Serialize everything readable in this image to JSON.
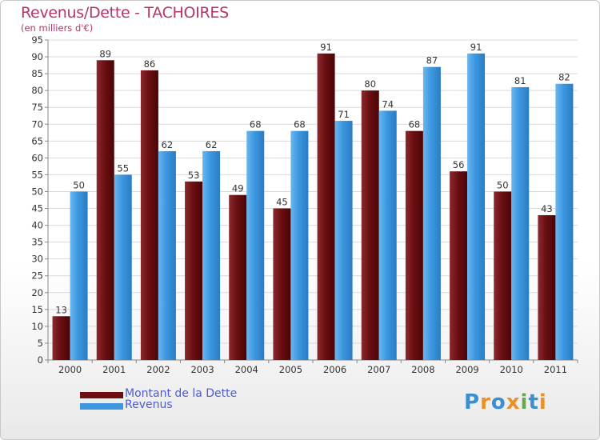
{
  "title": "Revenus/Dette - TACHOIRES",
  "subtitle": "(en milliers d'€)",
  "logo": {
    "text": "Proxiti",
    "letters": [
      "P",
      "r",
      "o",
      "x",
      "i",
      "t",
      "i"
    ],
    "colors": [
      "#3a8fd0",
      "#e8912a",
      "#3a8fd0",
      "#e8912a",
      "#6aa84f",
      "#3a8fd0",
      "#e8912a"
    ]
  },
  "colors": {
    "dette": "#6b0f12",
    "revenus": "#3c97df",
    "title": "#b5356a",
    "legend_text": "#4b5bd6"
  },
  "chart_data": {
    "type": "bar",
    "categories": [
      "2000",
      "2001",
      "2002",
      "2003",
      "2004",
      "2005",
      "2006",
      "2007",
      "2008",
      "2009",
      "2010",
      "2011"
    ],
    "series": [
      {
        "name": "Montant de la Dette",
        "values": [
          13,
          89,
          86,
          53,
          49,
          45,
          91,
          80,
          68,
          56,
          50,
          43
        ]
      },
      {
        "name": "Revenus",
        "values": [
          50,
          55,
          62,
          62,
          68,
          68,
          71,
          74,
          87,
          91,
          81,
          82
        ]
      }
    ],
    "ylim": [
      0,
      95
    ],
    "yticks": [
      0,
      5,
      10,
      15,
      20,
      25,
      30,
      35,
      40,
      45,
      50,
      55,
      60,
      65,
      70,
      75,
      80,
      85,
      90,
      95
    ],
    "grid": true,
    "legend": "bottom-left"
  }
}
